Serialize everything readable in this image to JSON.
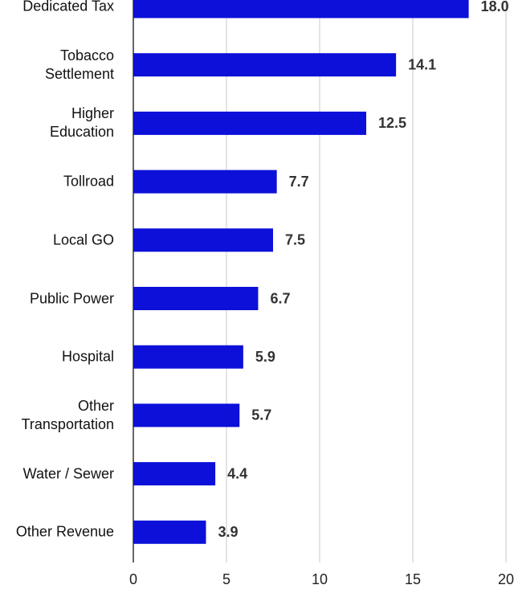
{
  "chart_data": {
    "type": "barh",
    "categories": [
      "Dedicated Tax",
      "Tobacco\nSettlement",
      "Higher\nEducation",
      "Tollroad",
      "Local GO",
      "Public Power",
      "Hospital",
      "Other\nTransportation",
      "Water / Sewer",
      "Other Revenue"
    ],
    "values": [
      18.0,
      14.1,
      12.5,
      7.7,
      7.5,
      6.7,
      5.9,
      5.7,
      4.4,
      3.9
    ],
    "value_labels": [
      "18.0",
      "14.1",
      "12.5",
      "7.7",
      "7.5",
      "6.7",
      "5.9",
      "5.7",
      "4.4",
      "3.9"
    ],
    "color": "#0c10d8",
    "xlim": [
      0,
      20
    ],
    "xticks": [
      0,
      5,
      10,
      15,
      20
    ],
    "grid": true
  }
}
